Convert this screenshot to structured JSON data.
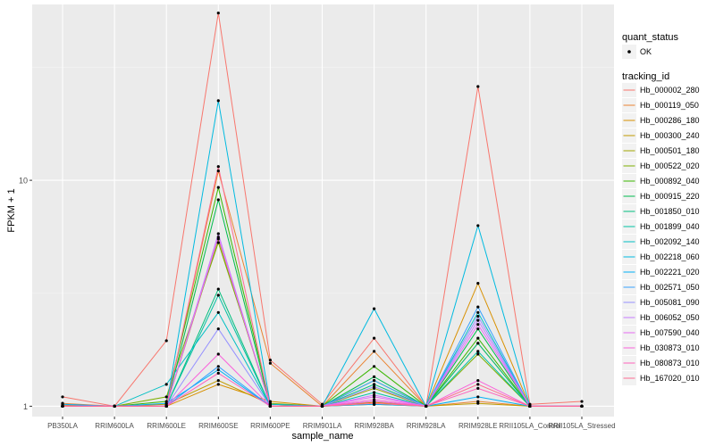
{
  "chart_data": {
    "type": "line",
    "title": "",
    "xlabel": "sample_name",
    "ylabel": "FPKM + 1",
    "y_scale": "log10",
    "ylim": [
      0.9,
      60
    ],
    "y_ticks": [
      1,
      10
    ],
    "y_tick_labels": [
      "1",
      "10"
    ],
    "categories": [
      "PB350LA",
      "RRIM600LA",
      "RRIM600LE",
      "RRIM600SE",
      "RRIM600PE",
      "RRIM901LA",
      "RRIM928BA",
      "RRIM928LA",
      "RRIM928LE",
      "RRII105LA_Control",
      "RRII105LA_Stressed"
    ],
    "grid": true,
    "legend": {
      "position": "right",
      "shape_title": "quant_status",
      "shape_entries": [
        "OK"
      ],
      "color_title": "tracking_id"
    },
    "series": [
      {
        "name": "Hb_000002_280",
        "color": "#F8766D",
        "values": [
          1.1,
          1.0,
          1.95,
          55.0,
          1.6,
          1.02,
          2.0,
          1.0,
          26.0,
          1.02,
          1.05
        ]
      },
      {
        "name": "Hb_000119_050",
        "color": "#EA8331",
        "values": [
          1.03,
          1.0,
          1.0,
          11.0,
          1.55,
          1.0,
          1.75,
          1.0,
          1.05,
          1.0,
          1.0
        ]
      },
      {
        "name": "Hb_000286_180",
        "color": "#D89000",
        "values": [
          1.01,
          1.0,
          1.0,
          1.25,
          1.05,
          1.0,
          1.04,
          1.0,
          3.5,
          1.0,
          1.0
        ]
      },
      {
        "name": "Hb_000300_240",
        "color": "#C09B00",
        "values": [
          1.0,
          1.0,
          1.02,
          1.3,
          1.02,
          1.0,
          1.02,
          1.0,
          1.03,
          1.0,
          1.0
        ]
      },
      {
        "name": "Hb_000501_180",
        "color": "#A3A500",
        "values": [
          1.0,
          1.0,
          1.0,
          5.5,
          1.0,
          1.0,
          1.2,
          1.0,
          1.9,
          1.0,
          1.0
        ]
      },
      {
        "name": "Hb_000522_020",
        "color": "#7CAE00",
        "values": [
          1.0,
          1.0,
          1.1,
          5.3,
          1.03,
          1.0,
          1.3,
          1.0,
          1.7,
          1.0,
          1.0
        ]
      },
      {
        "name": "Hb_000892_040",
        "color": "#39B600",
        "values": [
          1.0,
          1.0,
          1.05,
          9.3,
          1.02,
          1.0,
          1.5,
          1.0,
          2.0,
          1.0,
          1.0
        ]
      },
      {
        "name": "Hb_000915_220",
        "color": "#00BB4E",
        "values": [
          1.0,
          1.0,
          1.0,
          8.2,
          1.0,
          1.0,
          1.35,
          1.0,
          2.2,
          1.0,
          1.0
        ]
      },
      {
        "name": "Hb_001850_010",
        "color": "#00BF7D",
        "values": [
          1.0,
          1.0,
          1.0,
          3.3,
          1.0,
          1.0,
          1.25,
          1.0,
          1.9,
          1.0,
          1.0
        ]
      },
      {
        "name": "Hb_001899_040",
        "color": "#00C1A3",
        "values": [
          1.0,
          1.0,
          1.0,
          3.1,
          1.0,
          1.0,
          1.15,
          1.0,
          1.75,
          1.0,
          1.0
        ]
      },
      {
        "name": "Hb_002092_140",
        "color": "#00BFC4",
        "values": [
          1.0,
          1.0,
          1.25,
          2.6,
          1.0,
          1.0,
          1.05,
          1.0,
          2.6,
          1.0,
          1.0
        ]
      },
      {
        "name": "Hb_002218_060",
        "color": "#00BAE0",
        "values": [
          1.0,
          1.0,
          1.0,
          22.5,
          1.02,
          1.0,
          2.7,
          1.0,
          6.3,
          1.0,
          1.0
        ]
      },
      {
        "name": "Hb_002221_020",
        "color": "#00B0F6",
        "values": [
          1.02,
          1.0,
          1.03,
          1.45,
          1.0,
          1.0,
          1.02,
          1.0,
          1.1,
          1.0,
          1.0
        ]
      },
      {
        "name": "Hb_002571_050",
        "color": "#35A2FF",
        "values": [
          1.0,
          1.0,
          1.0,
          1.5,
          1.0,
          1.0,
          1.3,
          1.0,
          2.75,
          1.0,
          1.0
        ]
      },
      {
        "name": "Hb_005081_090",
        "color": "#9590FF",
        "values": [
          1.0,
          1.0,
          1.0,
          2.2,
          1.0,
          1.0,
          1.22,
          1.0,
          2.5,
          1.0,
          1.0
        ]
      },
      {
        "name": "Hb_006052_050",
        "color": "#C77CFF",
        "values": [
          1.0,
          1.0,
          1.0,
          5.8,
          1.0,
          1.0,
          1.12,
          1.0,
          2.4,
          1.0,
          1.0
        ]
      },
      {
        "name": "Hb_007590_040",
        "color": "#E76BF3",
        "values": [
          1.0,
          1.0,
          1.0,
          5.6,
          1.0,
          1.0,
          1.1,
          1.0,
          2.3,
          1.0,
          1.0
        ]
      },
      {
        "name": "Hb_030873_010",
        "color": "#FA62DB",
        "values": [
          1.0,
          1.0,
          1.0,
          1.7,
          1.0,
          1.0,
          1.07,
          1.0,
          1.3,
          1.0,
          1.0
        ]
      },
      {
        "name": "Hb_080873_010",
        "color": "#FF62BC",
        "values": [
          1.0,
          1.0,
          1.0,
          1.4,
          1.0,
          1.0,
          1.05,
          1.0,
          1.2,
          1.0,
          1.0
        ]
      },
      {
        "name": "Hb_167020_010",
        "color": "#FF6C91",
        "values": [
          1.0,
          1.0,
          1.0,
          11.5,
          1.0,
          1.0,
          1.03,
          1.0,
          1.25,
          1.0,
          1.0
        ]
      }
    ]
  }
}
